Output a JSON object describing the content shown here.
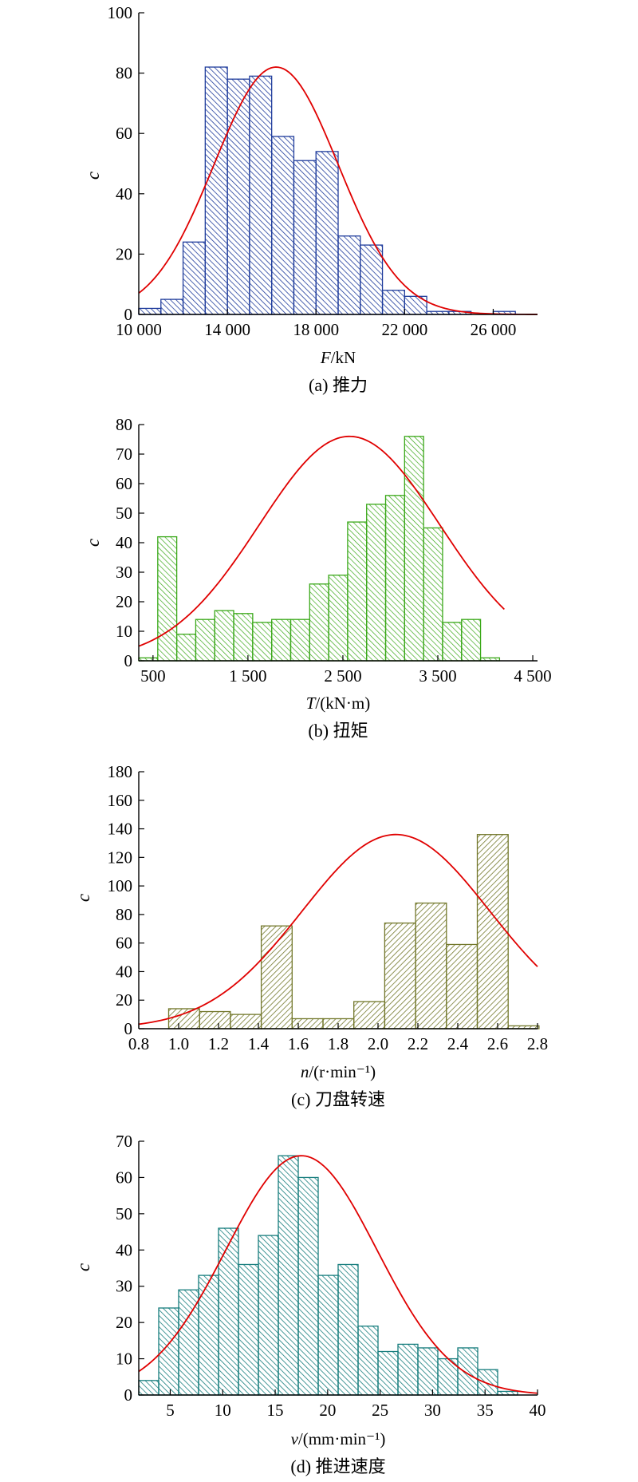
{
  "chart_data": [
    {
      "type": "bar",
      "panel": "a",
      "color": "#1f3c9c",
      "hatch": "backslash",
      "ylabel": "c",
      "xlabel_var": "F",
      "xlabel_unit": "/kN",
      "caption": "(a) 推力",
      "xlim": [
        10000,
        28000
      ],
      "ylim": [
        0,
        100
      ],
      "xticks": [
        10000,
        14000,
        18000,
        22000,
        26000
      ],
      "xtick_labels": [
        "10 000",
        "14 000",
        "18 000",
        "22 000",
        "26 000"
      ],
      "yticks": [
        0,
        20,
        40,
        60,
        80,
        100
      ],
      "bin_start": 10000,
      "bin_width": 1000,
      "values": [
        2,
        5,
        24,
        82,
        78,
        79,
        59,
        51,
        54,
        26,
        23,
        8,
        6,
        1,
        1,
        0,
        1,
        0
      ],
      "fit": {
        "mean": 16200,
        "sd": 2800,
        "peak": 82
      }
    },
    {
      "type": "bar",
      "panel": "b",
      "color": "#3aa819",
      "hatch": "backslash",
      "ylabel": "c",
      "xlabel_var": "T",
      "xlabel_unit": "/(kN·m)",
      "caption": "(b) 扭矩",
      "xlim": [
        350,
        4550
      ],
      "ylim": [
        0,
        80
      ],
      "xticks": [
        500,
        1500,
        2500,
        3500,
        4500
      ],
      "xtick_labels": [
        "500",
        "1 500",
        "2 500",
        "3 500",
        "4 500"
      ],
      "yticks": [
        0,
        10,
        20,
        30,
        40,
        50,
        60,
        70,
        80
      ],
      "bin_start": 350,
      "bin_width": 200,
      "values": [
        1,
        42,
        9,
        14,
        17,
        16,
        13,
        14,
        14,
        26,
        29,
        47,
        53,
        56,
        76,
        45,
        13,
        14,
        1
      ],
      "fit": {
        "mean": 2570,
        "sd": 950,
        "peak": 76,
        "x_end": 4200
      }
    },
    {
      "type": "bar",
      "panel": "c",
      "color": "#72772a",
      "hatch": "forward",
      "ylabel": "c",
      "xlabel_var": "n",
      "xlabel_unit": "/(r·min⁻¹)",
      "caption": "(c) 刀盘转速",
      "xlim": [
        0.8,
        2.8
      ],
      "ylim": [
        0,
        180
      ],
      "xticks": [
        0.8,
        1.0,
        1.2,
        1.4,
        1.6,
        1.8,
        2.0,
        2.2,
        2.4,
        2.6,
        2.8
      ],
      "xtick_labels": [
        "0.8",
        "1.0",
        "1.2",
        "1.4",
        "1.6",
        "1.8",
        "2.0",
        "2.2",
        "2.4",
        "2.6",
        "2.8"
      ],
      "yticks": [
        0,
        20,
        40,
        60,
        80,
        100,
        120,
        140,
        160,
        180
      ],
      "bin_start": 0.95,
      "bin_width": 0.1548,
      "values": [
        14,
        12,
        10,
        72,
        7,
        7,
        19,
        74,
        88,
        59,
        136,
        2
      ],
      "fit": {
        "mean": 2.09,
        "sd": 0.47,
        "peak": 136
      }
    },
    {
      "type": "bar",
      "panel": "d",
      "color": "#167d7d",
      "hatch": "backslash",
      "ylabel": "c",
      "xlabel_var": "v",
      "xlabel_unit": "/(mm·min⁻¹)",
      "caption": "(d) 推进速度",
      "xlim": [
        2,
        40
      ],
      "ylim": [
        0,
        70
      ],
      "xticks": [
        5,
        10,
        15,
        20,
        25,
        30,
        35,
        40
      ],
      "xtick_labels": [
        "5",
        "10",
        "15",
        "20",
        "25",
        "30",
        "35",
        "40"
      ],
      "yticks": [
        0,
        10,
        20,
        30,
        40,
        50,
        60,
        70
      ],
      "bin_start": 2,
      "bin_width": 1.9,
      "values": [
        4,
        24,
        29,
        33,
        46,
        36,
        44,
        66,
        60,
        33,
        36,
        19,
        12,
        14,
        13,
        10,
        13,
        7,
        1
      ],
      "fit": {
        "mean": 17.5,
        "sd": 7.2,
        "peak": 66
      }
    }
  ]
}
